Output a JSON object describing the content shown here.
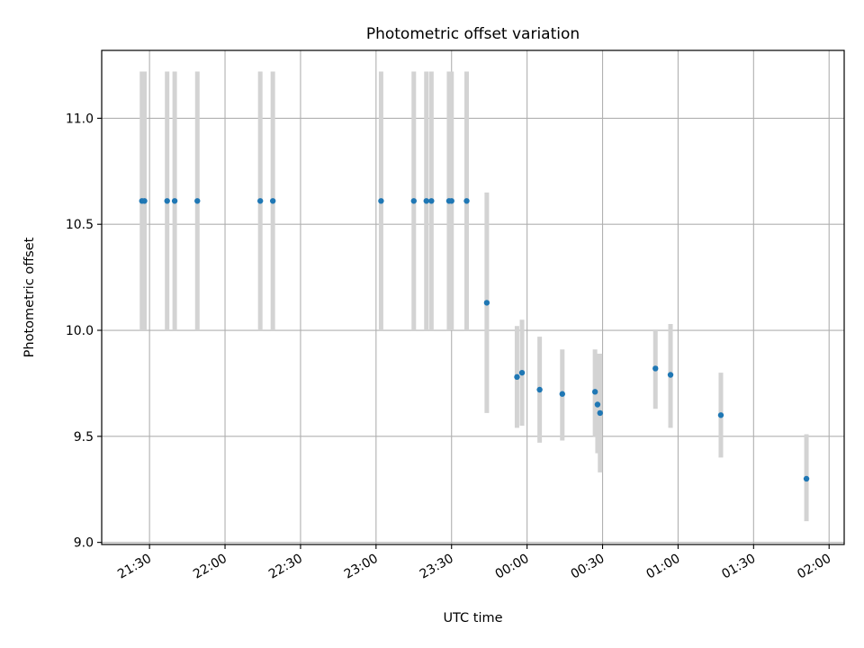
{
  "chart_data": {
    "type": "scatter",
    "title": "Photometric offset variation",
    "xlabel": "UTC time",
    "ylabel": "Photometric offset",
    "grid": true,
    "ylim": [
      8.99,
      11.32
    ],
    "xlim": [
      "21:11",
      "02:06"
    ],
    "x_ticks": [
      "21:30",
      "22:00",
      "22:30",
      "23:00",
      "23:30",
      "00:00",
      "00:30",
      "01:00",
      "01:30",
      "02:00"
    ],
    "y_ticks": [
      9.0,
      9.5,
      10.0,
      10.5,
      11.0
    ],
    "y_tick_labels": [
      "9.0",
      "9.5",
      "10.0",
      "10.5",
      "11.0"
    ],
    "point_color": "#1f77b4",
    "errorbar_color": "#d3d3d3",
    "series": [
      {
        "points": [
          {
            "x": "21:27",
            "y": 10.61,
            "lo": 10.0,
            "hi": 11.22
          },
          {
            "x": "21:28",
            "y": 10.61,
            "lo": 10.0,
            "hi": 11.22
          },
          {
            "x": "21:37",
            "y": 10.61,
            "lo": 10.0,
            "hi": 11.22
          },
          {
            "x": "21:40",
            "y": 10.61,
            "lo": 10.0,
            "hi": 11.22
          },
          {
            "x": "21:49",
            "y": 10.61,
            "lo": 10.0,
            "hi": 11.22
          },
          {
            "x": "22:14",
            "y": 10.61,
            "lo": 10.0,
            "hi": 11.22
          },
          {
            "x": "22:19",
            "y": 10.61,
            "lo": 10.0,
            "hi": 11.22
          },
          {
            "x": "23:02",
            "y": 10.61,
            "lo": 10.0,
            "hi": 11.22
          },
          {
            "x": "23:15",
            "y": 10.61,
            "lo": 10.0,
            "hi": 11.22
          },
          {
            "x": "23:20",
            "y": 10.61,
            "lo": 10.0,
            "hi": 11.22
          },
          {
            "x": "23:22",
            "y": 10.61,
            "lo": 10.0,
            "hi": 11.22
          },
          {
            "x": "23:29",
            "y": 10.61,
            "lo": 10.0,
            "hi": 11.22
          },
          {
            "x": "23:30",
            "y": 10.61,
            "lo": 10.0,
            "hi": 11.22
          },
          {
            "x": "23:36",
            "y": 10.61,
            "lo": 10.0,
            "hi": 11.22
          },
          {
            "x": "23:44",
            "y": 10.13,
            "lo": 9.61,
            "hi": 10.65
          },
          {
            "x": "23:56",
            "y": 9.78,
            "lo": 9.54,
            "hi": 10.02
          },
          {
            "x": "23:58",
            "y": 9.8,
            "lo": 9.55,
            "hi": 10.05
          },
          {
            "x": "00:05",
            "y": 9.72,
            "lo": 9.47,
            "hi": 9.97
          },
          {
            "x": "00:14",
            "y": 9.7,
            "lo": 9.48,
            "hi": 9.91
          },
          {
            "x": "00:27",
            "y": 9.71,
            "lo": 9.5,
            "hi": 9.91
          },
          {
            "x": "00:28",
            "y": 9.65,
            "lo": 9.42,
            "hi": 9.89
          },
          {
            "x": "00:29",
            "y": 9.61,
            "lo": 9.33,
            "hi": 9.89
          },
          {
            "x": "00:51",
            "y": 9.82,
            "lo": 9.63,
            "hi": 10.0
          },
          {
            "x": "00:57",
            "y": 9.79,
            "lo": 9.54,
            "hi": 10.03
          },
          {
            "x": "01:17",
            "y": 9.6,
            "lo": 9.4,
            "hi": 9.8
          },
          {
            "x": "01:51",
            "y": 9.3,
            "lo": 9.1,
            "hi": 9.51
          }
        ]
      }
    ]
  }
}
